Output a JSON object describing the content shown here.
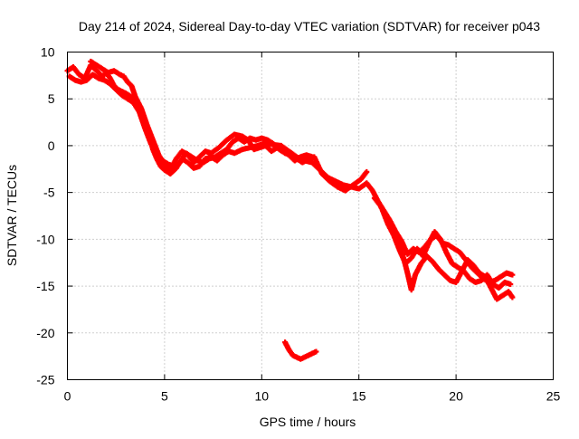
{
  "chart_data": {
    "type": "scatter",
    "title": "Day 214 of 2024, Sidereal Day-to-day VTEC variation (SDTVAR) for receiver p043",
    "xlabel": "GPS time / hours",
    "ylabel": "SDTVAR / TECUs",
    "xlim": [
      0,
      25
    ],
    "ylim": [
      -25,
      10
    ],
    "xticks": [
      0,
      5,
      10,
      15,
      20,
      25
    ],
    "yticks": [
      -25,
      -20,
      -15,
      -10,
      -5,
      0,
      5,
      10
    ],
    "xtick_labels": [
      "0",
      "5",
      "10",
      "15",
      "20",
      "25"
    ],
    "ytick_labels": [
      "-25",
      "-20",
      "-15",
      "-10",
      "-5",
      "0",
      "5",
      "10"
    ],
    "grid": true,
    "marker": "plus",
    "color": "#ff0000",
    "series": [
      {
        "name": "SDTVAR",
        "tracks": [
          [
            [
              0,
              8.0
            ],
            [
              0.3,
              8.4
            ],
            [
              0.6,
              7.6
            ],
            [
              0.9,
              7.2
            ],
            [
              1.2,
              8.6
            ],
            [
              1.5,
              8.0
            ],
            [
              1.8,
              7.4
            ],
            [
              2.0,
              7.8
            ],
            [
              2.2,
              7.2
            ],
            [
              2.4,
              6.4
            ],
            [
              2.6,
              6.0
            ],
            [
              2.8,
              5.8
            ],
            [
              3.0,
              5.6
            ],
            [
              3.3,
              5.2
            ],
            [
              3.6,
              4.4
            ],
            [
              3.9,
              2.6
            ],
            [
              4.2,
              1.2
            ],
            [
              4.4,
              -0.4
            ],
            [
              4.6,
              -1.4
            ],
            [
              4.8,
              -2.2
            ],
            [
              5.0,
              -2.6
            ],
            [
              5.3,
              -3.0
            ],
            [
              5.6,
              -2.4
            ],
            [
              5.9,
              -1.4
            ],
            [
              6.2,
              -1.8
            ],
            [
              6.5,
              -2.4
            ],
            [
              6.8,
              -2.2
            ],
            [
              7.1,
              -1.4
            ],
            [
              7.4,
              -1.2
            ],
            [
              7.7,
              -1.6
            ],
            [
              8.0,
              -1.0
            ],
            [
              8.3,
              -0.6
            ],
            [
              8.6,
              -0.8
            ],
            [
              9.0,
              -0.4
            ],
            [
              9.4,
              -0.2
            ],
            [
              9.8,
              0.0
            ],
            [
              10.2,
              0.3
            ],
            [
              10.6,
              0.1
            ],
            [
              11.0,
              0.0
            ],
            [
              11.4,
              -0.6
            ],
            [
              11.8,
              -1.2
            ],
            [
              12.2,
              -1.6
            ],
            [
              12.6,
              -1.8
            ],
            [
              13.0,
              -2.6
            ],
            [
              13.4,
              -3.4
            ],
            [
              13.8,
              -3.8
            ],
            [
              14.2,
              -4.2
            ],
            [
              14.6,
              -4.4
            ],
            [
              15.0,
              -4.6
            ],
            [
              15.4,
              -4.0
            ],
            [
              15.7,
              -4.8
            ],
            [
              16.0,
              -6.0
            ],
            [
              16.3,
              -7.0
            ],
            [
              16.6,
              -8.0
            ],
            [
              16.9,
              -9.2
            ],
            [
              17.2,
              -10.2
            ],
            [
              17.5,
              -11.6
            ],
            [
              17.8,
              -11.0
            ],
            [
              18.1,
              -11.4
            ],
            [
              18.4,
              -10.8
            ],
            [
              18.7,
              -10.0
            ],
            [
              19.0,
              -9.6
            ],
            [
              19.3,
              -10.4
            ],
            [
              19.6,
              -10.6
            ],
            [
              19.9,
              -11.0
            ],
            [
              20.2,
              -11.4
            ],
            [
              20.5,
              -12.2
            ],
            [
              20.8,
              -13.0
            ],
            [
              21.1,
              -13.6
            ],
            [
              21.4,
              -14.2
            ],
            [
              21.7,
              -14.6
            ],
            [
              22.0,
              -14.4
            ],
            [
              22.3,
              -14.0
            ],
            [
              22.6,
              -13.6
            ],
            [
              22.9,
              -13.8
            ]
          ],
          [
            [
              0.1,
              7.4
            ],
            [
              0.4,
              7.0
            ],
            [
              0.7,
              6.8
            ],
            [
              1.0,
              7.0
            ],
            [
              1.3,
              7.6
            ],
            [
              1.6,
              7.2
            ],
            [
              1.9,
              7.0
            ],
            [
              2.2,
              6.6
            ],
            [
              2.5,
              6.0
            ],
            [
              2.8,
              5.4
            ],
            [
              3.1,
              5.0
            ],
            [
              3.4,
              4.6
            ],
            [
              3.7,
              3.6
            ],
            [
              4.0,
              1.8
            ],
            [
              4.3,
              0.2
            ],
            [
              4.6,
              -0.8
            ],
            [
              4.9,
              -1.6
            ],
            [
              5.2,
              -2.0
            ],
            [
              5.5,
              -2.2
            ],
            [
              5.8,
              -1.8
            ],
            [
              6.1,
              -0.8
            ],
            [
              6.4,
              -1.2
            ],
            [
              6.7,
              -1.6
            ],
            [
              7.0,
              -1.8
            ],
            [
              7.3,
              -1.4
            ],
            [
              7.6,
              -1.2
            ],
            [
              7.9,
              -0.8
            ],
            [
              8.2,
              -0.4
            ],
            [
              8.5,
              0.4
            ],
            [
              8.8,
              0.8
            ],
            [
              9.1,
              0.4
            ],
            [
              9.4,
              0.8
            ],
            [
              9.7,
              0.6
            ],
            [
              10.0,
              0.8
            ],
            [
              10.3,
              0.6
            ],
            [
              10.6,
              0.2
            ],
            [
              10.9,
              -0.4
            ],
            [
              11.2,
              -0.8
            ],
            [
              11.5,
              -1.0
            ],
            [
              11.8,
              -1.4
            ],
            [
              12.1,
              -1.8
            ],
            [
              12.4,
              -1.4
            ],
            [
              12.7,
              -1.2
            ],
            [
              13.1,
              -3.0
            ],
            [
              13.5,
              -3.8
            ],
            [
              13.9,
              -4.4
            ],
            [
              14.3,
              -4.8
            ],
            [
              14.7,
              -4.2
            ],
            [
              15.1,
              -3.6
            ],
            [
              15.4,
              -2.8
            ]
          ],
          [
            [
              1.2,
              9.0
            ],
            [
              1.5,
              8.6
            ],
            [
              1.8,
              8.2
            ],
            [
              2.1,
              7.8
            ],
            [
              2.4,
              8.0
            ],
            [
              2.7,
              7.6
            ],
            [
              2.9,
              7.4
            ],
            [
              3.1,
              6.8
            ],
            [
              3.3,
              6.4
            ],
            [
              3.5,
              5.2
            ],
            [
              3.8,
              4.0
            ],
            [
              4.1,
              2.2
            ],
            [
              4.4,
              0.6
            ],
            [
              4.7,
              -1.0
            ],
            [
              5.0,
              -2.0
            ],
            [
              5.3,
              -2.6
            ],
            [
              5.6,
              -1.4
            ],
            [
              5.9,
              -0.6
            ],
            [
              6.2,
              -1.0
            ],
            [
              6.5,
              -1.8
            ],
            [
              6.8,
              -1.2
            ],
            [
              7.1,
              -0.6
            ],
            [
              7.4,
              -0.8
            ],
            [
              7.8,
              -0.2
            ],
            [
              8.2,
              0.6
            ],
            [
              8.6,
              1.2
            ],
            [
              9.0,
              1.0
            ],
            [
              9.3,
              0.6
            ],
            [
              9.6,
              -0.4
            ],
            [
              9.9,
              -0.2
            ],
            [
              10.2,
              0.0
            ],
            [
              10.5,
              -0.6
            ],
            [
              10.8,
              -0.2
            ],
            [
              11.1,
              -0.6
            ],
            [
              11.4,
              -1.0
            ],
            [
              11.7,
              -1.6
            ],
            [
              12.0,
              -1.2
            ],
            [
              12.3,
              -1.0
            ],
            [
              12.6,
              -1.2
            ]
          ],
          [
            [
              15.8,
              -5.6
            ],
            [
              16.1,
              -6.4
            ],
            [
              16.4,
              -7.6
            ],
            [
              16.7,
              -8.8
            ],
            [
              17.0,
              -10.4
            ],
            [
              17.3,
              -12.0
            ],
            [
              17.5,
              -13.6
            ],
            [
              17.7,
              -15.4
            ],
            [
              17.9,
              -13.8
            ],
            [
              18.2,
              -12.6
            ],
            [
              18.5,
              -11.8
            ],
            [
              18.8,
              -12.4
            ],
            [
              19.1,
              -13.2
            ],
            [
              19.4,
              -13.8
            ],
            [
              19.7,
              -14.4
            ],
            [
              20.0,
              -14.6
            ],
            [
              20.3,
              -13.4
            ],
            [
              20.6,
              -12.2
            ],
            [
              20.9,
              -12.8
            ],
            [
              21.2,
              -13.6
            ],
            [
              21.5,
              -14.0
            ],
            [
              21.8,
              -15.2
            ],
            [
              22.1,
              -16.4
            ],
            [
              22.4,
              -16.0
            ],
            [
              22.7,
              -15.6
            ],
            [
              22.9,
              -16.2
            ]
          ],
          [
            [
              16.2,
              -6.8
            ],
            [
              16.5,
              -8.4
            ],
            [
              16.8,
              -9.6
            ],
            [
              17.1,
              -11.2
            ],
            [
              17.4,
              -12.6
            ],
            [
              17.7,
              -12.0
            ],
            [
              18.0,
              -11.0
            ],
            [
              18.3,
              -11.8
            ],
            [
              18.6,
              -10.4
            ],
            [
              18.9,
              -9.2
            ],
            [
              19.2,
              -10.0
            ],
            [
              19.5,
              -11.4
            ],
            [
              19.8,
              -12.6
            ],
            [
              20.1,
              -13.0
            ],
            [
              20.4,
              -13.4
            ],
            [
              20.7,
              -14.2
            ],
            [
              21.0,
              -14.6
            ],
            [
              21.3,
              -14.4
            ],
            [
              21.6,
              -13.8
            ],
            [
              21.9,
              -14.8
            ],
            [
              22.2,
              -15.2
            ],
            [
              22.5,
              -14.6
            ],
            [
              22.8,
              -14.8
            ]
          ],
          [
            [
              11.2,
              -21.0
            ],
            [
              11.4,
              -21.8
            ],
            [
              11.6,
              -22.4
            ],
            [
              11.8,
              -22.6
            ],
            [
              12.0,
              -22.8
            ],
            [
              12.2,
              -22.6
            ],
            [
              12.4,
              -22.4
            ],
            [
              12.6,
              -22.2
            ],
            [
              12.8,
              -22.0
            ]
          ]
        ]
      }
    ]
  }
}
